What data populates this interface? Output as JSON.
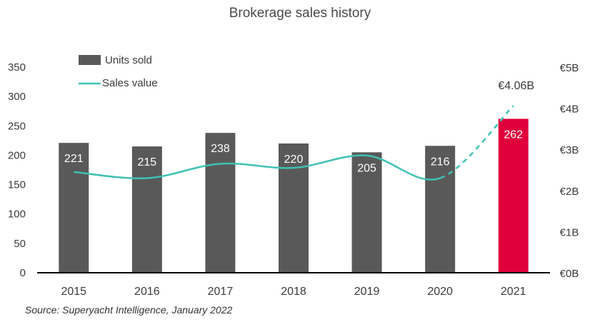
{
  "chart_data": {
    "type": "bar+line",
    "title": "Brokerage sales history",
    "categories": [
      "2015",
      "2016",
      "2017",
      "2018",
      "2019",
      "2020",
      "2021"
    ],
    "series": [
      {
        "name": "Units sold",
        "kind": "bar",
        "axis": "left",
        "values": [
          221,
          215,
          238,
          220,
          205,
          216,
          262
        ],
        "labels": [
          "221",
          "215",
          "238",
          "220",
          "205",
          "216",
          "262"
        ]
      },
      {
        "name": "Sales value",
        "kind": "line",
        "axis": "right",
        "unit": "€B",
        "values": [
          2.45,
          2.3,
          2.65,
          2.55,
          2.85,
          2.3,
          4.06
        ],
        "dashed_from_index": 5,
        "annotation": "€4.06B"
      }
    ],
    "left_axis": {
      "ylim": [
        0,
        350
      ],
      "ticks": [
        0,
        50,
        100,
        150,
        200,
        250,
        300,
        350
      ]
    },
    "right_axis": {
      "ylim": [
        0,
        5
      ],
      "ticks": [
        0,
        1,
        2,
        3,
        4,
        5
      ],
      "tick_labels": [
        "€0B",
        "€1B",
        "€2B",
        "€3B",
        "€4B",
        "€5B"
      ]
    },
    "legend": {
      "position": "top-left",
      "entries": [
        "Units sold",
        "Sales value"
      ]
    },
    "source": "Source: Superyacht Intelligence, January 2022",
    "colors": {
      "bar": "#595959",
      "highlight_bar": "#e0003c",
      "line": "#3fc1b6",
      "axis": "#000000",
      "text": "#3a3a3a"
    },
    "highlight_index": 6
  }
}
